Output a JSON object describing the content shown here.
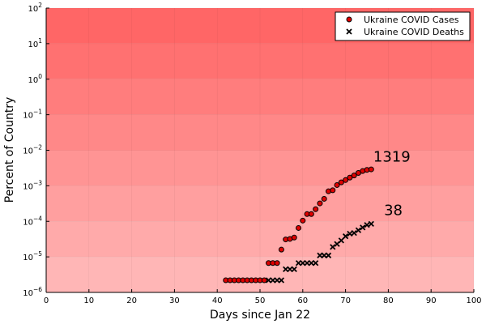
{
  "chart_data": {
    "type": "scatter",
    "xlabel": "Days since Jan 22",
    "ylabel": "Percent of Country",
    "xlim": [
      0,
      100
    ],
    "ylim": [
      1e-06,
      100
    ],
    "yscale": "log",
    "grid": true,
    "legend_position": "top-right",
    "x_ticks": [
      0,
      10,
      20,
      30,
      40,
      50,
      60,
      70,
      80,
      90,
      100
    ],
    "x_tick_labels": [
      "0",
      "10",
      "20",
      "30",
      "40",
      "50",
      "60",
      "70",
      "80",
      "90",
      "100"
    ],
    "y_tick_exponents": [
      -6,
      -5,
      -4,
      -3,
      -2,
      -1,
      0,
      1,
      2
    ],
    "y_tick_base": "10",
    "background_band_colors": [
      "#ffb6b6",
      "#ffaaaa",
      "#ff9f9f",
      "#ff9494",
      "#ff8888",
      "#ff7d7d",
      "#ff7171",
      "#ff6666"
    ],
    "series": [
      {
        "name": "Ukraine COVID Cases",
        "marker": "circle",
        "color": "#e00000",
        "x": [
          42,
          43,
          44,
          45,
          46,
          47,
          48,
          49,
          50,
          51,
          52,
          53,
          54,
          55,
          56,
          57,
          58,
          59,
          60,
          61,
          62,
          63,
          64,
          65,
          66,
          67,
          68,
          69,
          70,
          71,
          72,
          73,
          74,
          75,
          76
        ],
        "y": [
          2.2e-06,
          2.2e-06,
          2.2e-06,
          2.2e-06,
          2.2e-06,
          2.2e-06,
          2.2e-06,
          2.2e-06,
          2.2e-06,
          2.2e-06,
          6.7e-06,
          6.7e-06,
          6.7e-06,
          1.6e-05,
          3.1e-05,
          3.2e-05,
          3.5e-05,
          6.5e-05,
          0.000105,
          0.00016,
          0.00016,
          0.00022,
          0.00032,
          0.00043,
          0.0007,
          0.00075,
          0.00105,
          0.00125,
          0.00145,
          0.0017,
          0.00195,
          0.0023,
          0.0026,
          0.0028,
          0.0029
        ]
      },
      {
        "name": "Ukraine COVID Deaths",
        "marker": "x",
        "color": "#000000",
        "x": [
          52,
          53,
          54,
          55,
          56,
          57,
          58,
          59,
          60,
          61,
          62,
          63,
          64,
          65,
          66,
          67,
          68,
          69,
          70,
          71,
          72,
          73,
          74,
          75,
          76
        ],
        "y": [
          2.2e-06,
          2.2e-06,
          2.2e-06,
          2.2e-06,
          4.5e-06,
          4.5e-06,
          4.5e-06,
          6.7e-06,
          6.7e-06,
          6.7e-06,
          6.7e-06,
          6.7e-06,
          1.1e-05,
          1.1e-05,
          1.1e-05,
          1.9e-05,
          2.3e-05,
          2.9e-05,
          3.8e-05,
          4.5e-05,
          4.7e-05,
          5.6e-05,
          6.7e-05,
          7.9e-05,
          8.5e-05
        ]
      }
    ],
    "annotations": [
      {
        "text": "1319",
        "x": 76.5,
        "y": 0.0048
      },
      {
        "text": "38",
        "x": 79,
        "y": 0.00015
      }
    ]
  }
}
